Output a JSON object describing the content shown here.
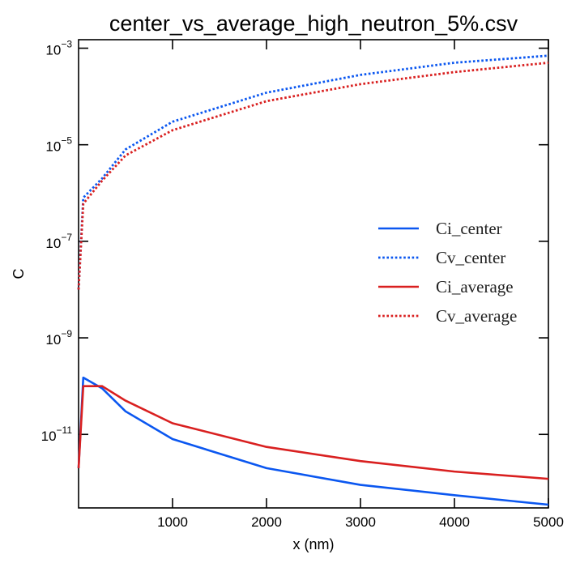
{
  "chart_data": {
    "type": "line",
    "title": "center_vs_average_high_neutron_5%.csv",
    "xlabel": "x (nm)",
    "ylabel": "C",
    "xlim": [
      0,
      5000
    ],
    "ylim": [
      3e-13,
      0.0015
    ],
    "yscale": "log",
    "x_ticks": [
      1000,
      2000,
      3000,
      4000,
      5000
    ],
    "y_ticks": [
      1e-11,
      1e-09,
      1e-07,
      1e-05,
      0.001
    ],
    "y_tick_labels": [
      {
        "base": "10",
        "exp": "−11"
      },
      {
        "base": "10",
        "exp": "−9"
      },
      {
        "base": "10",
        "exp": "−7"
      },
      {
        "base": "10",
        "exp": "−5"
      },
      {
        "base": "10",
        "exp": "−3"
      }
    ],
    "grid": false,
    "legend_position": "right",
    "series": [
      {
        "name": "Ci_center",
        "color": "#0b57f0",
        "style": "solid",
        "x": [
          0,
          50,
          250,
          500,
          1000,
          2000,
          3000,
          4000,
          5000
        ],
        "y": [
          2e-12,
          1.5e-10,
          9e-11,
          3e-11,
          8e-12,
          2e-12,
          9e-13,
          5.5e-13,
          3.5e-13
        ]
      },
      {
        "name": "Cv_center",
        "color": "#0b57f0",
        "style": "dotted",
        "x": [
          0,
          50,
          250,
          500,
          1000,
          2000,
          3000,
          4000,
          5000
        ],
        "y": [
          1e-08,
          8e-07,
          2e-06,
          8e-06,
          3e-05,
          0.00012,
          0.00028,
          0.0005,
          0.0007
        ]
      },
      {
        "name": "Ci_average",
        "color": "#d92020",
        "style": "solid",
        "x": [
          0,
          50,
          250,
          500,
          1000,
          2000,
          3000,
          4000,
          5000
        ],
        "y": [
          2e-12,
          1e-10,
          1e-10,
          5e-11,
          1.7e-11,
          5.5e-12,
          2.8e-12,
          1.7e-12,
          1.2e-12
        ]
      },
      {
        "name": "Cv_average",
        "color": "#d92020",
        "style": "dotted",
        "x": [
          0,
          50,
          250,
          500,
          1000,
          2000,
          3000,
          4000,
          5000
        ],
        "y": [
          1e-08,
          6e-07,
          1.8e-06,
          6e-06,
          2e-05,
          8e-05,
          0.00018,
          0.00032,
          0.0005
        ]
      }
    ]
  }
}
